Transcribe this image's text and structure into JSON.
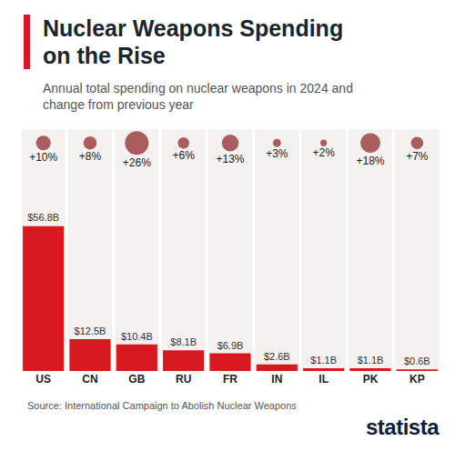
{
  "chart_data": {
    "type": "bar",
    "title": "Nuclear Weapons Spending on the Rise",
    "subtitle": "Annual total spending on nuclear weapons in 2024 and change from previous year",
    "categories": [
      "US",
      "CN",
      "GB",
      "RU",
      "FR",
      "IN",
      "IL",
      "PK",
      "KP"
    ],
    "values": [
      56.8,
      12.5,
      10.4,
      8.1,
      6.9,
      2.6,
      1.1,
      1.1,
      0.6
    ],
    "value_labels": [
      "$56.8B",
      "$12.5B",
      "$10.4B",
      "$8.1B",
      "$6.9B",
      "$2.6B",
      "$1.1B",
      "$1.1B",
      "$0.6B"
    ],
    "change": [
      10,
      8,
      26,
      6,
      13,
      3,
      2,
      18,
      7
    ],
    "change_labels": [
      "+10%",
      "+8%",
      "+26%",
      "+6%",
      "+13%",
      "+3%",
      "+2%",
      "+18%",
      "+7%"
    ],
    "color": "#d7191f",
    "data_labels": true,
    "tick_labels": "x",
    "grid": false,
    "ylim": [
      0,
      56.8
    ],
    "source": "Source: International Campaign to Abolish Nuclear Weapons",
    "logo": "statista"
  }
}
